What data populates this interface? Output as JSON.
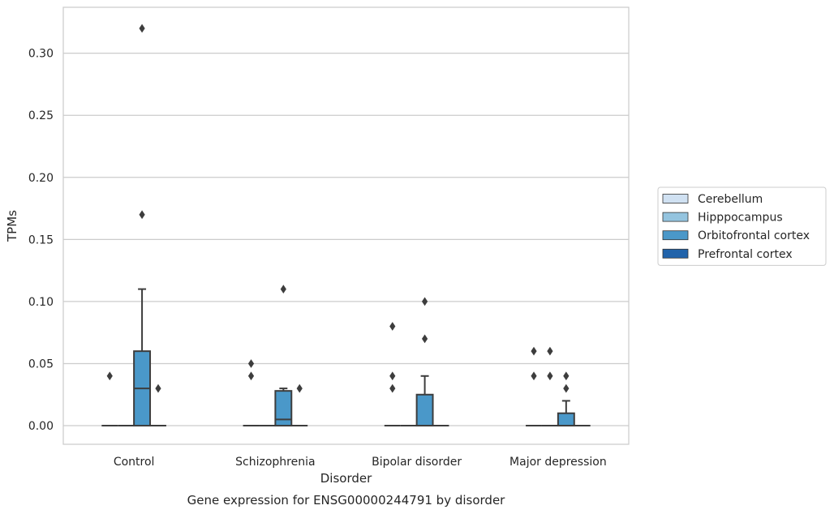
{
  "chart_data": {
    "type": "box",
    "title": "Gene expression for ENSG00000244791 by disorder",
    "xlabel": "Disorder",
    "ylabel": "TPMs",
    "ylim": [
      -0.015,
      0.337
    ],
    "yticks": [
      0.0,
      0.05,
      0.1,
      0.15,
      0.2,
      0.25,
      0.3
    ],
    "ytick_labels": [
      "0.00",
      "0.05",
      "0.10",
      "0.15",
      "0.20",
      "0.25",
      "0.30"
    ],
    "grid": true,
    "legend_position": "right",
    "categories": [
      "Control",
      "Schizophrenia",
      "Bipolar disorder",
      "Major depression"
    ],
    "series": [
      {
        "name": "Cerebellum",
        "color": "#d0e1f2",
        "boxes": [
          {
            "q1": 0,
            "median": 0,
            "q3": 0,
            "whisker_low": 0,
            "whisker_high": 0,
            "outliers": [
              0.04
            ]
          },
          {
            "q1": 0,
            "median": 0,
            "q3": 0,
            "whisker_low": 0,
            "whisker_high": 0,
            "outliers": [
              0.04,
              0.05
            ]
          },
          {
            "q1": 0,
            "median": 0,
            "q3": 0,
            "whisker_low": 0,
            "whisker_high": 0,
            "outliers": [
              0.03,
              0.04,
              0.08
            ]
          },
          {
            "q1": 0,
            "median": 0,
            "q3": 0,
            "whisker_low": 0,
            "whisker_high": 0,
            "outliers": [
              0.04,
              0.06
            ]
          }
        ]
      },
      {
        "name": "Hipppocampus",
        "color": "#94c4df",
        "boxes": [
          {
            "q1": 0,
            "median": 0,
            "q3": 0,
            "whisker_low": 0,
            "whisker_high": 0,
            "outliers": []
          },
          {
            "q1": 0,
            "median": 0,
            "q3": 0,
            "whisker_low": 0,
            "whisker_high": 0,
            "outliers": []
          },
          {
            "q1": 0,
            "median": 0,
            "q3": 0,
            "whisker_low": 0,
            "whisker_high": 0,
            "outliers": []
          },
          {
            "q1": 0,
            "median": 0,
            "q3": 0,
            "whisker_low": 0,
            "whisker_high": 0,
            "outliers": [
              0.04,
              0.06
            ]
          }
        ]
      },
      {
        "name": "Orbitofrontal cortex",
        "color": "#4a98c9",
        "boxes": [
          {
            "q1": 0,
            "median": 0.03,
            "q3": 0.06,
            "whisker_low": 0,
            "whisker_high": 0.11,
            "outliers": [
              0.17,
              0.32
            ]
          },
          {
            "q1": 0,
            "median": 0.005,
            "q3": 0.028,
            "whisker_low": 0,
            "whisker_high": 0.03,
            "outliers": [
              0.11
            ]
          },
          {
            "q1": 0,
            "median": 0,
            "q3": 0.025,
            "whisker_low": 0,
            "whisker_high": 0.04,
            "outliers": [
              0.07,
              0.1
            ]
          },
          {
            "q1": 0,
            "median": 0,
            "q3": 0.01,
            "whisker_low": 0,
            "whisker_high": 0.02,
            "outliers": [
              0.03,
              0.04
            ]
          }
        ]
      },
      {
        "name": "Prefrontal cortex",
        "color": "#2163aa",
        "boxes": [
          {
            "q1": 0,
            "median": 0,
            "q3": 0,
            "whisker_low": 0,
            "whisker_high": 0,
            "outliers": [
              0.03
            ]
          },
          {
            "q1": 0,
            "median": 0,
            "q3": 0,
            "whisker_low": 0,
            "whisker_high": 0,
            "outliers": [
              0.03
            ]
          },
          {
            "q1": 0,
            "median": 0,
            "q3": 0,
            "whisker_low": 0,
            "whisker_high": 0,
            "outliers": []
          },
          {
            "q1": 0,
            "median": 0,
            "q3": 0,
            "whisker_low": 0,
            "whisker_high": 0,
            "outliers": []
          }
        ]
      }
    ]
  }
}
